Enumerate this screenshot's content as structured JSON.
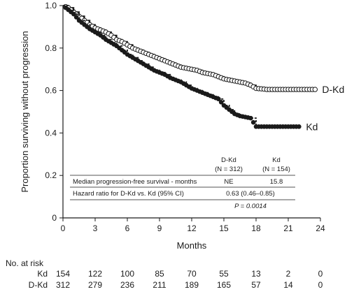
{
  "chart_data": {
    "type": "line",
    "xlabel": "Months",
    "ylabel": "Proportion surviving without progression",
    "xlim": [
      0,
      24
    ],
    "ylim": [
      0,
      1.0
    ],
    "x_ticks": [
      "0",
      "3",
      "6",
      "9",
      "12",
      "15",
      "18",
      "21",
      "24"
    ],
    "y_ticks": [
      "0",
      "0.2",
      "0.4",
      "0.6",
      "0.8",
      "1.0"
    ],
    "grid": false,
    "series": [
      {
        "name": "D-Kd",
        "color": "#1a1a1a",
        "marker": "open-circle",
        "line_style": "solid",
        "points": [
          [
            0,
            1.0
          ],
          [
            0.5,
            0.99
          ],
          [
            1,
            0.97
          ],
          [
            1.5,
            0.95
          ],
          [
            2,
            0.93
          ],
          [
            2.5,
            0.91
          ],
          [
            3,
            0.895
          ],
          [
            3.5,
            0.885
          ],
          [
            4,
            0.875
          ],
          [
            4.5,
            0.86
          ],
          [
            5,
            0.84
          ],
          [
            5.5,
            0.83
          ],
          [
            6,
            0.815
          ],
          [
            6.5,
            0.8
          ],
          [
            7,
            0.79
          ],
          [
            7.5,
            0.78
          ],
          [
            8,
            0.77
          ],
          [
            8.5,
            0.76
          ],
          [
            9,
            0.75
          ],
          [
            9.5,
            0.74
          ],
          [
            10,
            0.73
          ],
          [
            10.5,
            0.72
          ],
          [
            11,
            0.71
          ],
          [
            11.5,
            0.705
          ],
          [
            12,
            0.7
          ],
          [
            12.5,
            0.695
          ],
          [
            13,
            0.685
          ],
          [
            13.5,
            0.68
          ],
          [
            14,
            0.675
          ],
          [
            14.5,
            0.665
          ],
          [
            15,
            0.655
          ],
          [
            15.5,
            0.65
          ],
          [
            16,
            0.645
          ],
          [
            16.5,
            0.64
          ],
          [
            17,
            0.635
          ],
          [
            17.5,
            0.625
          ],
          [
            18,
            0.61
          ],
          [
            18.5,
            0.608
          ],
          [
            19,
            0.605
          ],
          [
            19.5,
            0.605
          ],
          [
            20,
            0.605
          ],
          [
            20.5,
            0.605
          ],
          [
            21,
            0.605
          ],
          [
            21.5,
            0.605
          ],
          [
            22,
            0.605
          ],
          [
            22.5,
            0.605
          ],
          [
            23,
            0.605
          ],
          [
            23.5,
            0.605
          ]
        ],
        "end_label": "D-Kd"
      },
      {
        "name": "Kd",
        "color": "#1a1a1a",
        "marker": "filled-circle",
        "line_style": "dashed",
        "points": [
          [
            0,
            1.0
          ],
          [
            0.5,
            0.98
          ],
          [
            1,
            0.96
          ],
          [
            1.5,
            0.93
          ],
          [
            2,
            0.91
          ],
          [
            2.5,
            0.89
          ],
          [
            3,
            0.875
          ],
          [
            3.5,
            0.86
          ],
          [
            4,
            0.84
          ],
          [
            4.5,
            0.825
          ],
          [
            5,
            0.81
          ],
          [
            5.5,
            0.79
          ],
          [
            6,
            0.77
          ],
          [
            6.5,
            0.755
          ],
          [
            7,
            0.74
          ],
          [
            7.5,
            0.725
          ],
          [
            8,
            0.71
          ],
          [
            8.5,
            0.695
          ],
          [
            9,
            0.685
          ],
          [
            9.5,
            0.675
          ],
          [
            10,
            0.66
          ],
          [
            10.5,
            0.65
          ],
          [
            11,
            0.64
          ],
          [
            11.5,
            0.625
          ],
          [
            12,
            0.61
          ],
          [
            12.5,
            0.6
          ],
          [
            13,
            0.59
          ],
          [
            13.5,
            0.58
          ],
          [
            14,
            0.57
          ],
          [
            14.5,
            0.56
          ],
          [
            15,
            0.53
          ],
          [
            15.5,
            0.51
          ],
          [
            16,
            0.49
          ],
          [
            16.5,
            0.48
          ],
          [
            17,
            0.475
          ],
          [
            17.5,
            0.47
          ],
          [
            18,
            0.43
          ],
          [
            18.5,
            0.43
          ],
          [
            19,
            0.43
          ],
          [
            19.5,
            0.43
          ],
          [
            20,
            0.43
          ],
          [
            20.5,
            0.43
          ],
          [
            21,
            0.43
          ],
          [
            22,
            0.43
          ]
        ],
        "end_label": "Kd"
      }
    ],
    "table": {
      "col_headers": [
        [
          "D-Kd",
          "(N = 312)"
        ],
        [
          "Kd",
          "(N = 154)"
        ]
      ],
      "rows": [
        {
          "label": "Median progression-free survival - months",
          "d_kd": "NE",
          "kd": "15.8"
        },
        {
          "label": "Hazard ratio for D-Kd vs. Kd (95% CI)",
          "combined": "0.63 (0.46–0.85)"
        }
      ],
      "p_value": "P = 0.0014"
    },
    "at_risk": {
      "title": "No. at risk",
      "rows": [
        {
          "label": "Kd",
          "values": [
            "154",
            "122",
            "100",
            "85",
            "70",
            "55",
            "13",
            "2",
            "0"
          ]
        },
        {
          "label": "D-Kd",
          "values": [
            "312",
            "279",
            "236",
            "211",
            "189",
            "165",
            "57",
            "14",
            "0"
          ]
        }
      ]
    }
  }
}
